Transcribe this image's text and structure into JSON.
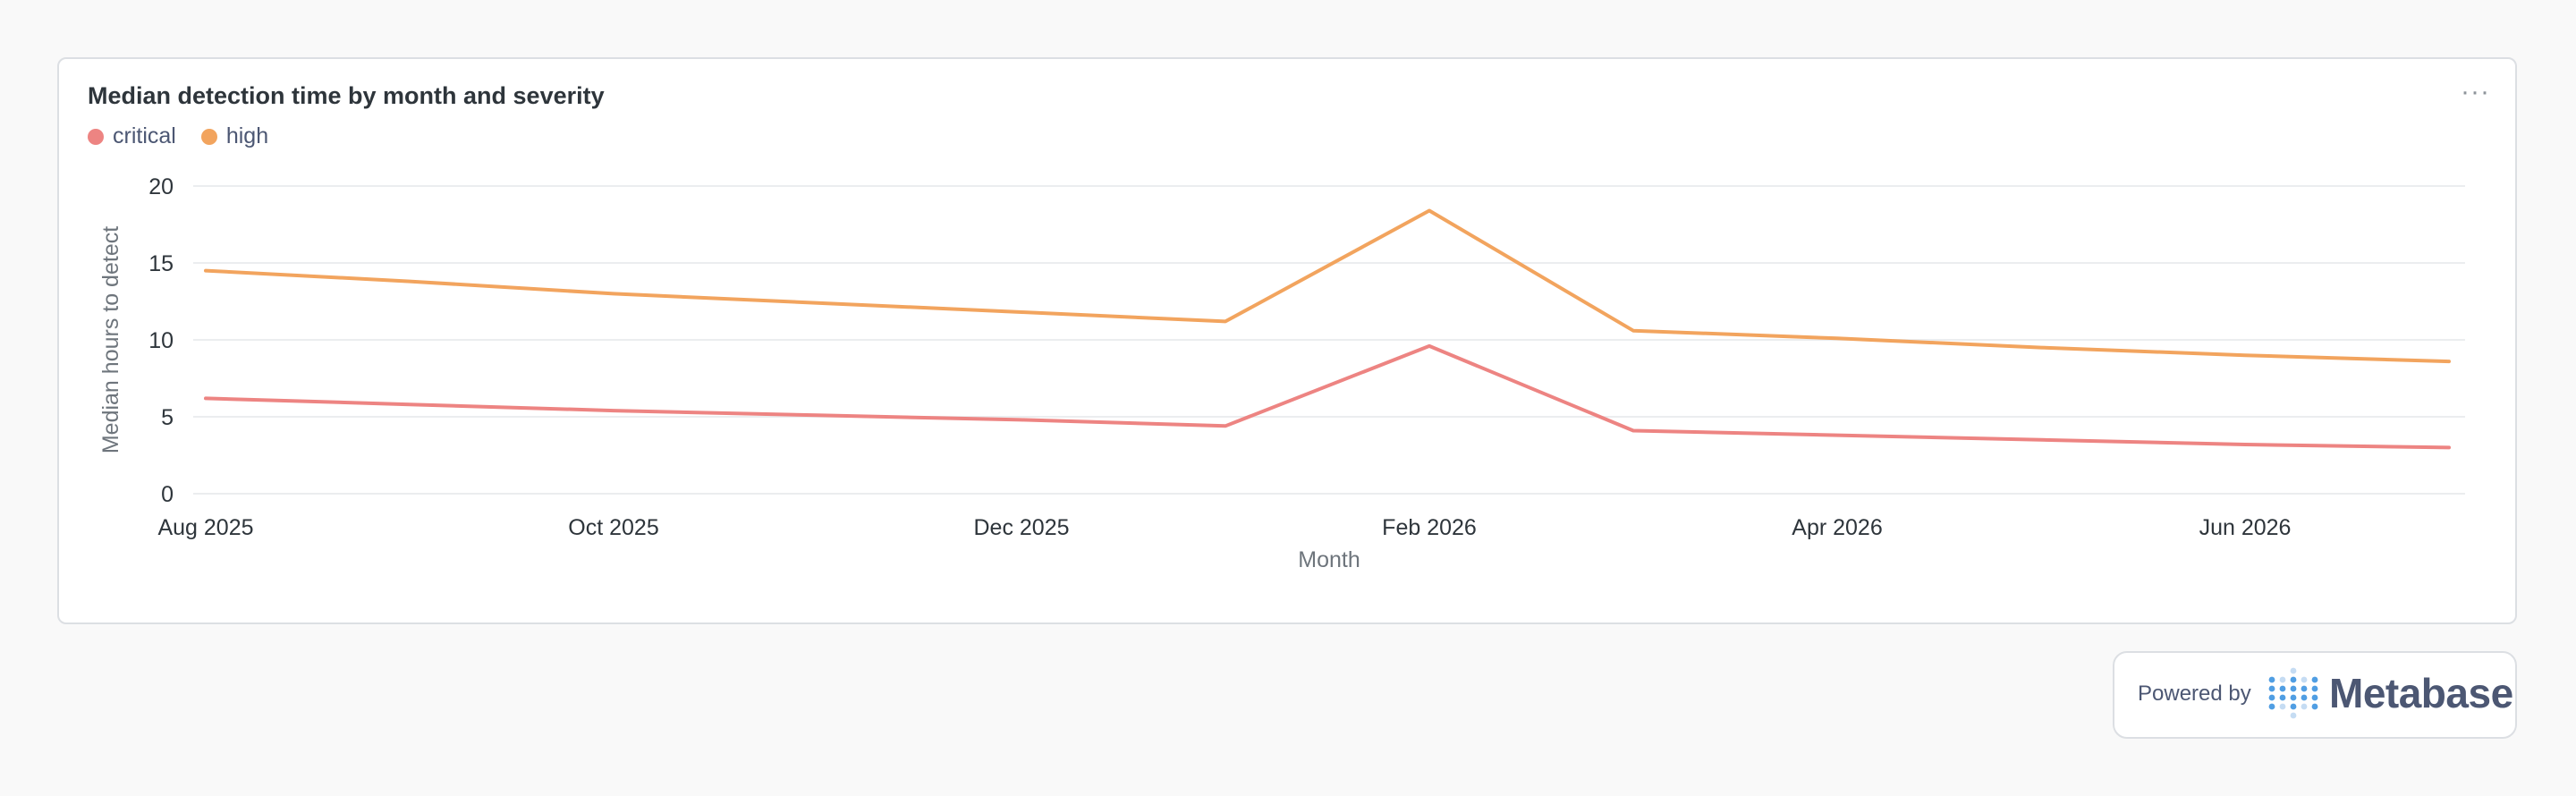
{
  "card": {
    "title": "Median detection time by month and severity",
    "menu_label": "···"
  },
  "legend": [
    {
      "label": "critical",
      "color": "#ed8482"
    },
    {
      "label": "high",
      "color": "#f2a45e"
    }
  ],
  "chart_data": {
    "type": "line",
    "title": "Median detection time by month and severity",
    "xlabel": "Month",
    "ylabel": "Median hours to detect",
    "x": [
      "Aug 2025",
      "Sep 2025",
      "Oct 2025",
      "Nov 2025",
      "Dec 2025",
      "Jan 2026",
      "Feb 2026",
      "Mar 2026",
      "Apr 2026",
      "May 2026",
      "Jun 2026",
      "Jul 2026"
    ],
    "x_tick_labels": [
      "Aug 2025",
      "Oct 2025",
      "Dec 2025",
      "Feb 2026",
      "Apr 2026",
      "Jun 2026"
    ],
    "ylim": [
      0,
      20
    ],
    "y_ticks": [
      0,
      5,
      10,
      15,
      20
    ],
    "grid": true,
    "legend_position": "top-left",
    "series": [
      {
        "name": "critical",
        "color": "#ed8482",
        "values": [
          6.2,
          5.8,
          5.4,
          5.1,
          4.8,
          4.4,
          9.6,
          4.1,
          3.8,
          3.5,
          3.2,
          3.0
        ]
      },
      {
        "name": "high",
        "color": "#f2a45e",
        "values": [
          14.5,
          13.8,
          13.0,
          12.4,
          11.8,
          11.2,
          18.4,
          10.6,
          10.1,
          9.5,
          9.0,
          8.6
        ]
      }
    ]
  },
  "footer": {
    "powered_by": "Powered by",
    "brand": "Metabase"
  }
}
